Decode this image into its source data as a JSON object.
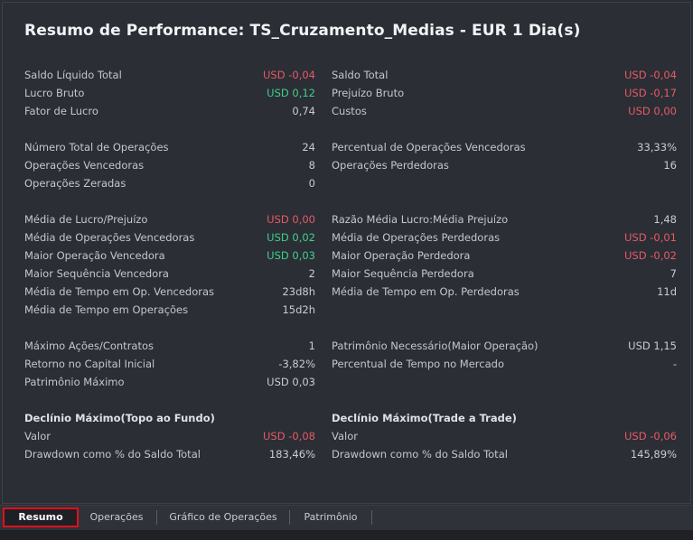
{
  "title": "Resumo de Performance: TS_Cruzamento_Medias - EUR 1 Dia(s)",
  "left": {
    "g1": [
      {
        "label": "Saldo Líquido Total",
        "value": "USD -0,04",
        "tone": "neg"
      },
      {
        "label": "Lucro Bruto",
        "value": "USD 0,12",
        "tone": "pos"
      },
      {
        "label": "Fator de Lucro",
        "value": "0,74",
        "tone": ""
      }
    ],
    "g2": [
      {
        "label": "Número Total de Operações",
        "value": "24",
        "tone": ""
      },
      {
        "label": "Operações Vencedoras",
        "value": "8",
        "tone": ""
      },
      {
        "label": "Operações Zeradas",
        "value": "0",
        "tone": ""
      }
    ],
    "g3": [
      {
        "label": "Média de Lucro/Prejuízo",
        "value": "USD 0,00",
        "tone": "neg"
      },
      {
        "label": "Média de Operações Vencedoras",
        "value": "USD 0,02",
        "tone": "pos"
      },
      {
        "label": "Maior Operação Vencedora",
        "value": "USD 0,03",
        "tone": "pos"
      },
      {
        "label": "Maior Sequência Vencedora",
        "value": "2",
        "tone": ""
      },
      {
        "label": "Média de Tempo em Op. Vencedoras",
        "value": "23d8h",
        "tone": ""
      },
      {
        "label": "Média de Tempo em Operações",
        "value": "15d2h",
        "tone": ""
      }
    ],
    "g4": [
      {
        "label": "Máximo Ações/Contratos",
        "value": "1",
        "tone": ""
      },
      {
        "label": "Retorno no Capital Inicial",
        "value": "-3,82%",
        "tone": ""
      },
      {
        "label": "Patrimônio Máximo",
        "value": "USD 0,03",
        "tone": ""
      }
    ],
    "g5_head": "Declínio Máximo(Topo ao Fundo)",
    "g5": [
      {
        "label": "Valor",
        "value": "USD -0,08",
        "tone": "neg"
      },
      {
        "label": "Drawdown como % do Saldo Total",
        "value": "183,46%",
        "tone": ""
      }
    ]
  },
  "right": {
    "g1": [
      {
        "label": "Saldo Total",
        "value": "USD -0,04",
        "tone": "neg"
      },
      {
        "label": "Prejuízo Bruto",
        "value": "USD -0,17",
        "tone": "neg"
      },
      {
        "label": "Custos",
        "value": "USD 0,00",
        "tone": "neg"
      }
    ],
    "g2": [
      {
        "label": "Percentual de Operações Vencedoras",
        "value": "33,33%",
        "tone": ""
      },
      {
        "label": "Operações Perdedoras",
        "value": "16",
        "tone": ""
      }
    ],
    "g3": [
      {
        "label": "Razão Média Lucro:Média Prejuízo",
        "value": "1,48",
        "tone": ""
      },
      {
        "label": "Média de Operações Perdedoras",
        "value": "USD -0,01",
        "tone": "neg"
      },
      {
        "label": "Maior Operação Perdedora",
        "value": "USD -0,02",
        "tone": "neg"
      },
      {
        "label": "Maior Sequência Perdedora",
        "value": "7",
        "tone": ""
      },
      {
        "label": "Média de Tempo em Op. Perdedoras",
        "value": "11d",
        "tone": ""
      }
    ],
    "g4": [
      {
        "label": "Patrimônio Necessário(Maior Operação)",
        "value": "USD 1,15",
        "tone": ""
      },
      {
        "label": "Percentual de Tempo no Mercado",
        "value": "-",
        "tone": ""
      }
    ],
    "g5_head": "Declínio Máximo(Trade a Trade)",
    "g5": [
      {
        "label": "Valor",
        "value": "USD -0,06",
        "tone": "neg"
      },
      {
        "label": "Drawdown como % do Saldo Total",
        "value": "145,89%",
        "tone": ""
      }
    ]
  },
  "tabs": [
    "Resumo",
    "Operações",
    "Gráfico de Operações",
    "Patrimônio"
  ],
  "colors": {
    "negative": "#e65a66",
    "positive": "#3fd08c",
    "active_tab_border": "#e0101a"
  }
}
